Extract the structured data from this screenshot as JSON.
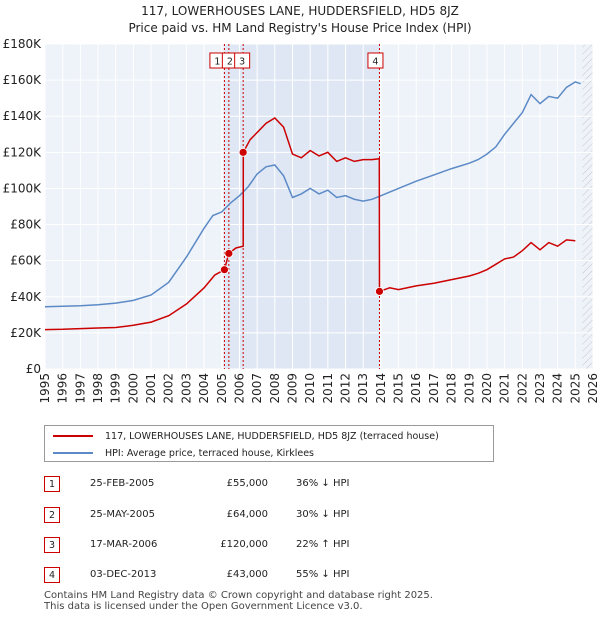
{
  "chart_data": {
    "type": "line",
    "title": "117, LOWERHOUSES LANE, HUDDERSFIELD, HD5 8JZ",
    "subtitle": "Price paid vs. HM Land Registry's House Price Index (HPI)",
    "xlabel": "",
    "ylabel": "",
    "xlim": [
      1995,
      2026
    ],
    "ylim": [
      0,
      180000
    ],
    "x_ticks": [
      1995,
      1996,
      1997,
      1998,
      1999,
      2000,
      2001,
      2002,
      2003,
      2004,
      2005,
      2006,
      2007,
      2008,
      2009,
      2010,
      2011,
      2012,
      2013,
      2014,
      2015,
      2016,
      2017,
      2018,
      2019,
      2020,
      2021,
      2022,
      2023,
      2024,
      2025,
      2026
    ],
    "y_ticks": [
      0,
      20000,
      40000,
      60000,
      80000,
      100000,
      120000,
      140000,
      160000,
      180000
    ],
    "y_tick_labels": [
      "£0",
      "£20K",
      "£40K",
      "£60K",
      "£80K",
      "£100K",
      "£120K",
      "£140K",
      "£160K",
      "£180K"
    ],
    "grid": true,
    "series": [
      {
        "name": "117, LOWERHOUSES LANE, HUDDERSFIELD, HD5 8JZ (terraced house)",
        "color": "#cc0000",
        "points": [
          [
            1995.0,
            21800
          ],
          [
            1996.0,
            22000
          ],
          [
            1997.0,
            22400
          ],
          [
            1998.0,
            22700
          ],
          [
            1999.0,
            23000
          ],
          [
            2000.0,
            24200
          ],
          [
            2001.0,
            26000
          ],
          [
            2002.0,
            29500
          ],
          [
            2003.0,
            36000
          ],
          [
            2004.0,
            45000
          ],
          [
            2004.6,
            52000
          ],
          [
            2005.15,
            55000
          ],
          [
            2005.4,
            64000
          ],
          [
            2005.8,
            67000
          ],
          [
            2006.21,
            68000
          ],
          [
            2006.22,
            120000
          ],
          [
            2006.6,
            127000
          ],
          [
            2007.0,
            131000
          ],
          [
            2007.5,
            136000
          ],
          [
            2008.0,
            139000
          ],
          [
            2008.5,
            134000
          ],
          [
            2009.0,
            119000
          ],
          [
            2009.5,
            117000
          ],
          [
            2010.0,
            121000
          ],
          [
            2010.5,
            118000
          ],
          [
            2011.0,
            120000
          ],
          [
            2011.5,
            115000
          ],
          [
            2012.0,
            117000
          ],
          [
            2012.5,
            115000
          ],
          [
            2013.0,
            116000
          ],
          [
            2013.5,
            116000
          ],
          [
            2013.91,
            116500
          ],
          [
            2013.92,
            43000
          ],
          [
            2014.5,
            45000
          ],
          [
            2015.0,
            44000
          ],
          [
            2016.0,
            46000
          ],
          [
            2017.0,
            47500
          ],
          [
            2018.0,
            49500
          ],
          [
            2019.0,
            51500
          ],
          [
            2019.5,
            53000
          ],
          [
            2020.0,
            55000
          ],
          [
            2020.5,
            58000
          ],
          [
            2021.0,
            61000
          ],
          [
            2021.5,
            62000
          ],
          [
            2022.0,
            65500
          ],
          [
            2022.5,
            70000
          ],
          [
            2023.0,
            66000
          ],
          [
            2023.5,
            70000
          ],
          [
            2024.0,
            68000
          ],
          [
            2024.5,
            71500
          ],
          [
            2025.0,
            71000
          ]
        ]
      },
      {
        "name": "HPI: Average price, terraced house, Kirklees",
        "color": "#5b8ac6",
        "points": [
          [
            1995.0,
            34500
          ],
          [
            1996.0,
            34700
          ],
          [
            1997.0,
            35000
          ],
          [
            1998.0,
            35600
          ],
          [
            1999.0,
            36500
          ],
          [
            2000.0,
            38000
          ],
          [
            2001.0,
            41000
          ],
          [
            2002.0,
            48000
          ],
          [
            2003.0,
            62000
          ],
          [
            2004.0,
            78000
          ],
          [
            2004.5,
            85000
          ],
          [
            2005.0,
            87000
          ],
          [
            2005.5,
            92000
          ],
          [
            2006.0,
            96000
          ],
          [
            2006.5,
            101000
          ],
          [
            2007.0,
            108000
          ],
          [
            2007.5,
            112000
          ],
          [
            2008.0,
            113000
          ],
          [
            2008.5,
            107000
          ],
          [
            2009.0,
            95000
          ],
          [
            2009.5,
            97000
          ],
          [
            2010.0,
            100000
          ],
          [
            2010.5,
            97000
          ],
          [
            2011.0,
            99000
          ],
          [
            2011.5,
            95000
          ],
          [
            2012.0,
            96000
          ],
          [
            2012.5,
            94000
          ],
          [
            2013.0,
            93000
          ],
          [
            2013.5,
            94000
          ],
          [
            2014.0,
            96000
          ],
          [
            2014.5,
            98000
          ],
          [
            2015.0,
            100000
          ],
          [
            2016.0,
            104000
          ],
          [
            2017.0,
            107500
          ],
          [
            2018.0,
            111000
          ],
          [
            2019.0,
            114000
          ],
          [
            2019.5,
            116000
          ],
          [
            2020.0,
            119000
          ],
          [
            2020.5,
            123000
          ],
          [
            2021.0,
            130000
          ],
          [
            2021.5,
            136000
          ],
          [
            2022.0,
            142000
          ],
          [
            2022.5,
            152000
          ],
          [
            2023.0,
            147000
          ],
          [
            2023.5,
            151000
          ],
          [
            2024.0,
            150000
          ],
          [
            2024.5,
            156000
          ],
          [
            2025.0,
            159000
          ],
          [
            2025.3,
            158000
          ]
        ]
      }
    ],
    "transactions": [
      {
        "label": "1",
        "x": 2005.15,
        "price_value": 55000
      },
      {
        "label": "2",
        "x": 2005.4,
        "price_value": 64000
      },
      {
        "label": "3",
        "x": 2006.21,
        "price_value": 120000
      },
      {
        "label": "4",
        "x": 2013.92,
        "price_value": 43000
      }
    ],
    "shaded_periods": [
      [
        2005.15,
        2006.21
      ],
      [
        2006.21,
        2013.92
      ]
    ],
    "forecast_from": 2025.4
  },
  "legend": {
    "property_label": "117, LOWERHOUSES LANE, HUDDERSFIELD, HD5 8JZ (terraced house)",
    "hpi_label": "HPI: Average price, terraced house, Kirklees",
    "property_color": "#cc0000",
    "hpi_color": "#5b8ac6"
  },
  "table": [
    {
      "num": "1",
      "date": "25-FEB-2005",
      "price": "£55,000",
      "hpi": "36% ↓ HPI"
    },
    {
      "num": "2",
      "date": "25-MAY-2005",
      "price": "£64,000",
      "hpi": "30% ↓ HPI"
    },
    {
      "num": "3",
      "date": "17-MAR-2006",
      "price": "£120,000",
      "hpi": "22% ↑ HPI"
    },
    {
      "num": "4",
      "date": "03-DEC-2013",
      "price": "£43,000",
      "hpi": "55% ↓ HPI"
    }
  ],
  "footer": {
    "line1": "Contains HM Land Registry data © Crown copyright and database right 2025.",
    "line2": "This data is licensed under the Open Government Licence v3.0."
  }
}
